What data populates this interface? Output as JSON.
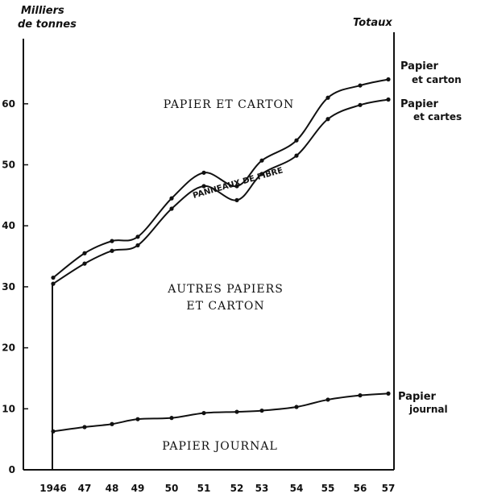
{
  "chart_data": {
    "type": "line",
    "ylabel": "Milliers\nde tonnes",
    "right_label": "Totaux",
    "ylim": [
      0,
      70
    ],
    "yticks": [
      0,
      10,
      20,
      30,
      40,
      50,
      60
    ],
    "x": [
      1946,
      1947,
      1948,
      1949,
      1950,
      1951,
      1952,
      1953,
      1954,
      1955,
      1956,
      1957
    ],
    "xtick_labels": [
      "1946",
      "47",
      "48",
      "49",
      "50",
      "51",
      "52",
      "53",
      "54",
      "55",
      "56",
      "57"
    ],
    "series": [
      {
        "name": "Papier et carton",
        "label_line1": "Papier",
        "label_line2": "et carton",
        "values": [
          31.5,
          35.5,
          37.5,
          38.2,
          44.5,
          48.7,
          46.5,
          50.7,
          54.0,
          61.0,
          63.0,
          64.0
        ]
      },
      {
        "name": "Papier et cartes",
        "label_line1": "Papier",
        "label_line2": "et cartes",
        "values": [
          30.5,
          33.8,
          35.9,
          36.8,
          42.8,
          46.5,
          44.2,
          48.5,
          51.5,
          57.5,
          59.8,
          60.7
        ]
      },
      {
        "name": "Papier journal",
        "label_line1": "Papier",
        "label_line2": "journal",
        "values": [
          6.3,
          7.0,
          7.5,
          8.3,
          8.5,
          9.3,
          9.5,
          9.7,
          10.3,
          11.5,
          12.2,
          12.5
        ]
      }
    ],
    "area_labels": {
      "top": "PAPIER ET CARTON",
      "band": "PANNEAUX DE FIBRE",
      "middle_line1": "AUTRES PAPIERS",
      "middle_line2": "ET CARTON",
      "bottom": "PAPIER JOURNAL"
    }
  }
}
